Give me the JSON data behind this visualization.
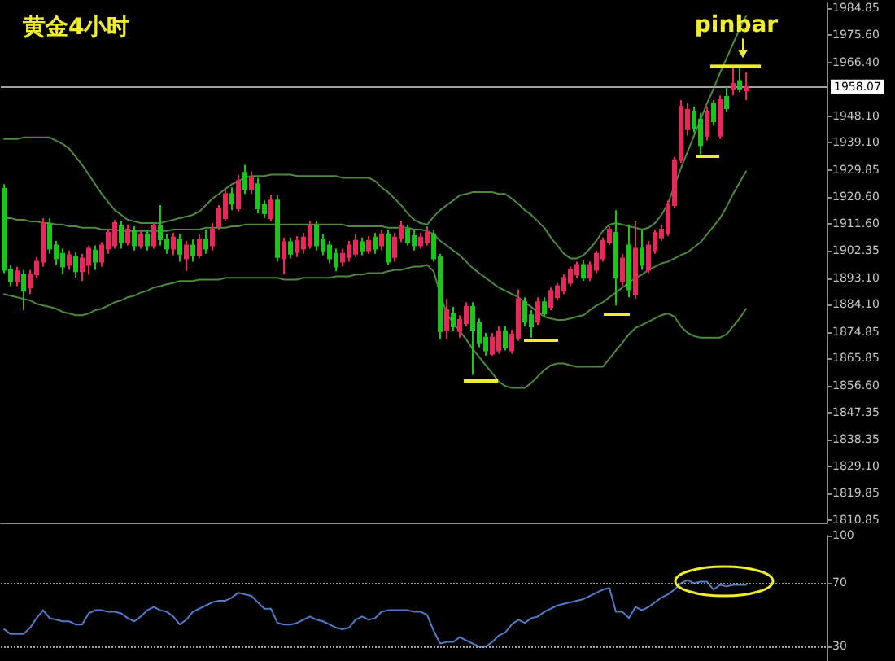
{
  "chart_data": [
    {
      "type": "candlestick",
      "title": "黄金4小时",
      "categories": [
        null,
        null,
        null,
        null,
        null,
        null,
        null,
        null,
        null,
        null,
        null,
        null,
        null,
        null,
        null,
        null,
        null,
        null,
        null,
        null,
        null,
        null,
        null,
        null,
        null,
        null,
        null,
        null,
        null,
        null,
        null,
        null,
        null,
        null,
        null,
        null,
        null,
        null,
        null,
        null,
        null,
        null,
        null,
        null,
        null,
        null,
        null,
        null,
        null,
        null,
        null,
        null,
        null,
        null,
        null,
        null,
        null,
        null,
        null,
        null,
        null,
        null,
        null,
        null,
        null,
        null,
        null,
        null,
        null,
        null,
        null,
        null,
        null,
        null,
        null,
        null,
        null,
        null,
        null,
        null,
        null,
        null,
        null,
        null,
        null,
        null,
        null,
        null,
        null,
        null,
        null,
        null,
        null,
        null,
        null,
        null,
        null,
        null,
        null,
        null,
        null,
        null,
        null,
        null,
        null,
        null,
        null,
        null,
        null,
        null,
        null,
        null,
        null,
        null,
        null,
        null,
        null,
        null,
        null,
        null,
        null,
        null,
        null,
        null,
        null,
        null,
        null
      ],
      "ohlc": [
        [
          1923.4,
          1925.0,
          1894.8,
          1895.9
        ],
        [
          1895.9,
          1897.6,
          1890.4,
          1892.1
        ],
        [
          1892.1,
          1897.0,
          1890.4,
          1895.4
        ],
        [
          1894.3,
          1895.9,
          1882.2,
          1888.8
        ],
        [
          1889.9,
          1895.9,
          1887.7,
          1894.3
        ],
        [
          1894.3,
          1900.3,
          1893.2,
          1898.7
        ],
        [
          1898.7,
          1913.5,
          1897.0,
          1911.8
        ],
        [
          1911.3,
          1913.5,
          1901.4,
          1903.1
        ],
        [
          1904.2,
          1905.8,
          1897.6,
          1899.8
        ],
        [
          1901.4,
          1903.1,
          1894.3,
          1897.0
        ],
        [
          1897.6,
          1902.5,
          1895.9,
          1900.9
        ],
        [
          1900.3,
          1901.9,
          1893.2,
          1895.4
        ],
        [
          1895.4,
          1901.4,
          1892.1,
          1899.8
        ],
        [
          1897.6,
          1904.2,
          1894.3,
          1903.1
        ],
        [
          1902.5,
          1904.2,
          1895.9,
          1898.7
        ],
        [
          1898.7,
          1905.3,
          1897.0,
          1904.2
        ],
        [
          1903.1,
          1909.6,
          1901.4,
          1908.5
        ],
        [
          1904.2,
          1912.9,
          1903.1,
          1911.8
        ],
        [
          1910.7,
          1912.4,
          1903.1,
          1905.3
        ],
        [
          1905.3,
          1911.3,
          1904.2,
          1909.6
        ],
        [
          1909.1,
          1910.7,
          1902.5,
          1904.2
        ],
        [
          1904.2,
          1909.6,
          1903.1,
          1908.0
        ],
        [
          1908.0,
          1909.6,
          1902.5,
          1904.2
        ],
        [
          1904.2,
          1911.8,
          1903.1,
          1910.7
        ],
        [
          1910.7,
          1917.9,
          1904.2,
          1906.3
        ],
        [
          1906.3,
          1908.0,
          1901.4,
          1903.1
        ],
        [
          1903.1,
          1908.5,
          1900.9,
          1906.9
        ],
        [
          1906.3,
          1908.0,
          1898.7,
          1901.4
        ],
        [
          1899.8,
          1905.8,
          1895.4,
          1904.2
        ],
        [
          1904.2,
          1906.3,
          1898.7,
          1900.9
        ],
        [
          1900.9,
          1908.0,
          1899.8,
          1906.3
        ],
        [
          1906.3,
          1909.6,
          1901.4,
          1903.1
        ],
        [
          1904.2,
          1911.8,
          1902.5,
          1909.6
        ],
        [
          1910.7,
          1917.9,
          1909.6,
          1916.8
        ],
        [
          1913.5,
          1923.4,
          1912.4,
          1921.7
        ],
        [
          1921.7,
          1923.9,
          1916.2,
          1918.4
        ],
        [
          1916.8,
          1928.3,
          1915.7,
          1926.1
        ],
        [
          1928.9,
          1931.6,
          1921.7,
          1923.4
        ],
        [
          1923.4,
          1929.4,
          1921.7,
          1927.2
        ],
        [
          1925.0,
          1927.2,
          1915.1,
          1916.8
        ],
        [
          1917.9,
          1919.5,
          1913.5,
          1915.1
        ],
        [
          1913.5,
          1921.2,
          1912.4,
          1919.5
        ],
        [
          1919.5,
          1921.2,
          1898.7,
          1900.3
        ],
        [
          1899.8,
          1906.9,
          1894.3,
          1905.3
        ],
        [
          1905.3,
          1906.9,
          1899.8,
          1901.4
        ],
        [
          1901.9,
          1907.4,
          1900.3,
          1905.8
        ],
        [
          1903.1,
          1908.5,
          1901.4,
          1906.9
        ],
        [
          1904.2,
          1912.4,
          1903.1,
          1910.7
        ],
        [
          1910.7,
          1912.4,
          1902.5,
          1904.2
        ],
        [
          1906.3,
          1908.0,
          1900.9,
          1902.5
        ],
        [
          1904.2,
          1905.8,
          1898.1,
          1899.8
        ],
        [
          1901.4,
          1903.1,
          1895.4,
          1897.0
        ],
        [
          1898.7,
          1903.1,
          1897.0,
          1901.4
        ],
        [
          1900.3,
          1905.8,
          1898.7,
          1904.2
        ],
        [
          1901.4,
          1908.0,
          1900.3,
          1905.8
        ],
        [
          1905.3,
          1906.9,
          1900.9,
          1902.5
        ],
        [
          1902.5,
          1907.4,
          1901.4,
          1905.8
        ],
        [
          1906.9,
          1908.5,
          1901.4,
          1903.1
        ],
        [
          1904.2,
          1909.6,
          1902.5,
          1908.0
        ],
        [
          1908.0,
          1909.6,
          1897.6,
          1898.7
        ],
        [
          1900.3,
          1908.5,
          1898.7,
          1906.9
        ],
        [
          1906.9,
          1912.4,
          1905.3,
          1910.7
        ],
        [
          1909.6,
          1911.3,
          1904.2,
          1905.3
        ],
        [
          1907.4,
          1909.6,
          1902.5,
          1904.2
        ],
        [
          1904.2,
          1908.5,
          1903.1,
          1906.9
        ],
        [
          1905.3,
          1910.7,
          1904.2,
          1908.5
        ],
        [
          1908.0,
          1909.6,
          1898.7,
          1899.8
        ],
        [
          1900.3,
          1901.4,
          1872.3,
          1875.1
        ],
        [
          1875.6,
          1886.0,
          1872.3,
          1882.2
        ],
        [
          1881.1,
          1883.3,
          1875.1,
          1876.7
        ],
        [
          1875.1,
          1880.5,
          1872.9,
          1878.9
        ],
        [
          1877.8,
          1884.9,
          1876.7,
          1883.3
        ],
        [
          1883.3,
          1884.9,
          1860.2,
          1875.6
        ],
        [
          1877.8,
          1879.4,
          1869.6,
          1871.2
        ],
        [
          1872.9,
          1874.5,
          1866.8,
          1868.5
        ],
        [
          1867.4,
          1874.5,
          1866.8,
          1872.9
        ],
        [
          1868.5,
          1876.7,
          1867.4,
          1875.1
        ],
        [
          1875.1,
          1876.7,
          1868.5,
          1869.6
        ],
        [
          1868.5,
          1875.6,
          1867.4,
          1874.0
        ],
        [
          1872.9,
          1889.3,
          1871.8,
          1886.0
        ],
        [
          1884.9,
          1886.6,
          1876.7,
          1878.3
        ],
        [
          1880.5,
          1882.2,
          1872.9,
          1876.7
        ],
        [
          1878.3,
          1886.6,
          1877.2,
          1884.9
        ],
        [
          1884.9,
          1886.6,
          1880.0,
          1881.1
        ],
        [
          1883.3,
          1889.9,
          1882.2,
          1888.8
        ],
        [
          1886.6,
          1891.5,
          1885.5,
          1890.4
        ],
        [
          1888.8,
          1894.3,
          1887.7,
          1893.2
        ],
        [
          1891.5,
          1897.0,
          1890.4,
          1895.9
        ],
        [
          1894.3,
          1898.7,
          1893.2,
          1897.6
        ],
        [
          1897.6,
          1899.2,
          1892.1,
          1893.2
        ],
        [
          1893.2,
          1898.7,
          1892.1,
          1897.6
        ],
        [
          1895.9,
          1902.5,
          1894.8,
          1901.4
        ],
        [
          1899.8,
          1906.9,
          1898.7,
          1905.8
        ],
        [
          1905.3,
          1910.7,
          1904.2,
          1909.6
        ],
        [
          1908.5,
          1916.2,
          1883.8,
          1893.2
        ],
        [
          1892.1,
          1901.4,
          1890.4,
          1899.8
        ],
        [
          1904.2,
          1911.3,
          1886.6,
          1889.3
        ],
        [
          1887.7,
          1912.4,
          1886.0,
          1903.1
        ],
        [
          1903.1,
          1909.6,
          1895.9,
          1897.6
        ],
        [
          1895.9,
          1905.8,
          1894.8,
          1904.2
        ],
        [
          1902.5,
          1909.6,
          1901.4,
          1908.5
        ],
        [
          1906.9,
          1911.3,
          1905.8,
          1909.6
        ],
        [
          1908.5,
          1919.5,
          1907.4,
          1917.9
        ],
        [
          1917.9,
          1934.3,
          1916.8,
          1933.2
        ],
        [
          1933.2,
          1953.6,
          1932.2,
          1951.4
        ],
        [
          1943.7,
          1952.5,
          1941.5,
          1950.3
        ],
        [
          1949.7,
          1951.4,
          1942.6,
          1944.2
        ],
        [
          1947.0,
          1949.2,
          1934.3,
          1938.2
        ],
        [
          1941.5,
          1951.4,
          1939.8,
          1949.7
        ],
        [
          1952.5,
          1953.6,
          1944.8,
          1946.4
        ],
        [
          1941.5,
          1955.2,
          1940.4,
          1953.6
        ],
        [
          1954.7,
          1958.0,
          1949.7,
          1950.8
        ],
        [
          1957.4,
          1964.5,
          1955.2,
          1959.1
        ],
        [
          1960.1,
          1964.5,
          1956.3,
          1957.4
        ],
        [
          1956.9,
          1963.0,
          1953.6,
          1958.1
        ],
        null,
        null,
        null,
        null,
        null,
        null,
        null,
        null,
        null,
        null,
        null,
        null
      ],
      "colors": [
        "#1cc41c",
        "#1cc41c",
        "#e8285a",
        "#1cc41c",
        "#e8285a",
        "#e8285a",
        "#e8285a",
        "#1cc41c",
        "#1cc41c",
        "#1cc41c",
        "#e8285a",
        "#1cc41c",
        "#e8285a",
        "#e8285a",
        "#1cc41c",
        "#e8285a",
        "#e8285a",
        "#e8285a",
        "#1cc41c",
        "#e8285a",
        "#1cc41c",
        "#e8285a",
        "#1cc41c",
        "#e8285a",
        "#1cc41c",
        "#1cc41c",
        "#e8285a",
        "#1cc41c",
        "#e8285a",
        "#1cc41c",
        "#e8285a",
        "#1cc41c",
        "#e8285a",
        "#e8285a",
        "#e8285a",
        "#1cc41c",
        "#e8285a",
        "#1cc41c",
        "#e8285a",
        "#1cc41c",
        "#1cc41c",
        "#e8285a",
        "#1cc41c",
        "#e8285a",
        "#1cc41c",
        "#e8285a",
        "#e8285a",
        "#e8285a",
        "#1cc41c",
        "#1cc41c",
        "#1cc41c",
        "#1cc41c",
        "#e8285a",
        "#e8285a",
        "#e8285a",
        "#1cc41c",
        "#e8285a",
        "#1cc41c",
        "#e8285a",
        "#1cc41c",
        "#e8285a",
        "#e8285a",
        "#1cc41c",
        "#1cc41c",
        "#e8285a",
        "#e8285a",
        "#1cc41c",
        "#1cc41c",
        "#e8285a",
        "#1cc41c",
        "#e8285a",
        "#e8285a",
        "#1cc41c",
        "#1cc41c",
        "#1cc41c",
        "#e8285a",
        "#e8285a",
        "#1cc41c",
        "#e8285a",
        "#e8285a",
        "#1cc41c",
        "#1cc41c",
        "#e8285a",
        "#1cc41c",
        "#e8285a",
        "#e8285a",
        "#e8285a",
        "#e8285a",
        "#e8285a",
        "#1cc41c",
        "#e8285a",
        "#e8285a",
        "#e8285a",
        "#e8285a",
        "#1cc41c",
        "#e8285a",
        "#1cc41c",
        "#e8285a",
        "#1cc41c",
        "#e8285a",
        "#e8285a",
        "#e8285a",
        "#e8285a",
        "#e8285a",
        "#e8285a",
        "#e8285a",
        "#1cc41c",
        "#1cc41c",
        "#e8285a",
        "#1cc41c",
        "#e8285a",
        "#1cc41c",
        "#e8285a",
        "#1cc41c",
        "#e8285a",
        null,
        null,
        null,
        null,
        null,
        null,
        null,
        null,
        null,
        null,
        null,
        null
      ],
      "series": [
        {
          "type": "line",
          "color": "#4e8a3e",
          "values": [
            1940.4,
            1940.4,
            1940.4,
            1940.9,
            1940.9,
            1940.9,
            1940.9,
            1940.9,
            1939.8,
            1938.7,
            1937.1,
            1934.3,
            1931.6,
            1928.3,
            1925.0,
            1921.7,
            1919.0,
            1916.2,
            1914.6,
            1912.9,
            1912.4,
            1911.8,
            1911.8,
            1911.8,
            1911.8,
            1912.4,
            1912.9,
            1913.5,
            1914.0,
            1914.6,
            1915.7,
            1917.9,
            1920.1,
            1921.7,
            1923.4,
            1925.0,
            1926.1,
            1927.2,
            1927.8,
            1927.8,
            1927.8,
            1928.3,
            1928.3,
            1928.3,
            1928.3,
            1927.8,
            1927.8,
            1927.8,
            1927.8,
            1927.8,
            1927.8,
            1927.8,
            1927.2,
            1927.2,
            1927.2,
            1927.2,
            1927.2,
            1926.1,
            1923.9,
            1922.3,
            1920.1,
            1917.9,
            1915.1,
            1912.9,
            1911.8,
            1911.3,
            1914.0,
            1916.2,
            1917.9,
            1919.5,
            1921.2,
            1921.7,
            1922.3,
            1922.3,
            1922.3,
            1922.3,
            1921.7,
            1921.7,
            1920.1,
            1918.4,
            1916.2,
            1914.6,
            1912.4,
            1910.2,
            1906.9,
            1904.2,
            1901.4,
            1899.8,
            1899.8,
            1900.9,
            1903.1,
            1905.8,
            1909.1,
            1911.3,
            1911.8,
            1911.3,
            1910.7,
            1910.2,
            1909.6,
            1910.2,
            1911.8,
            1914.6,
            1918.4,
            1924.5,
            1930.5,
            1936.0,
            1941.5,
            1947.0,
            1952.5,
            1957.4,
            1962.9,
            1967.8,
            1972.8,
            1977.7,
            1982.1,
            null,
            null,
            null,
            null,
            null,
            null,
            null,
            null,
            null,
            null,
            null,
            null
          ]
        },
        {
          "type": "line",
          "color": "#4e8a3e",
          "values": [
            1913.5,
            1913.5,
            1912.9,
            1912.9,
            1912.4,
            1912.4,
            1911.8,
            1911.8,
            1911.3,
            1911.3,
            1910.7,
            1910.7,
            1910.2,
            1910.2,
            1910.2,
            1909.6,
            1909.6,
            1909.6,
            1909.1,
            1909.1,
            1909.1,
            1909.1,
            1909.1,
            1909.1,
            1909.1,
            1909.1,
            1909.6,
            1909.6,
            1909.6,
            1909.6,
            1909.6,
            1910.2,
            1910.2,
            1910.2,
            1910.2,
            1910.7,
            1910.7,
            1911.3,
            1911.3,
            1911.3,
            1911.3,
            1911.3,
            1911.3,
            1911.3,
            1911.3,
            1911.3,
            1911.3,
            1911.3,
            1911.3,
            1911.3,
            1911.3,
            1911.3,
            1911.3,
            1910.7,
            1910.7,
            1910.7,
            1910.7,
            1910.7,
            1910.7,
            1910.2,
            1910.2,
            1910.2,
            1910.2,
            1909.6,
            1909.6,
            1909.1,
            1908.0,
            1905.8,
            1904.2,
            1902.5,
            1900.9,
            1898.7,
            1896.5,
            1894.8,
            1893.2,
            1891.5,
            1889.9,
            1888.8,
            1887.7,
            1886.6,
            1884.9,
            1883.3,
            1881.6,
            1880.0,
            1879.4,
            1878.9,
            1878.9,
            1879.4,
            1880.0,
            1880.5,
            1882.2,
            1883.8,
            1884.9,
            1886.6,
            1888.2,
            1889.9,
            1891.5,
            1893.2,
            1894.3,
            1895.9,
            1897.0,
            1898.1,
            1898.7,
            1899.8,
            1900.9,
            1901.9,
            1903.6,
            1905.3,
            1908.0,
            1910.7,
            1913.5,
            1917.3,
            1921.7,
            1925.6,
            1929.4,
            null,
            null,
            null,
            null,
            null,
            null,
            null,
            null,
            null,
            null,
            null,
            null
          ]
        },
        {
          "type": "line",
          "color": "#4e8a3e",
          "values": [
            1887.7,
            1887.1,
            1886.6,
            1886.0,
            1885.5,
            1884.4,
            1883.8,
            1883.3,
            1882.7,
            1881.6,
            1881.1,
            1880.5,
            1880.5,
            1881.1,
            1882.2,
            1882.7,
            1883.8,
            1884.9,
            1885.5,
            1886.6,
            1887.1,
            1888.2,
            1888.8,
            1889.9,
            1890.4,
            1891.0,
            1891.5,
            1892.1,
            1892.1,
            1892.1,
            1892.6,
            1892.6,
            1892.6,
            1892.6,
            1893.2,
            1893.2,
            1893.2,
            1893.2,
            1893.2,
            1893.2,
            1893.2,
            1893.2,
            1893.2,
            1892.6,
            1892.6,
            1892.6,
            1893.2,
            1893.2,
            1893.2,
            1893.2,
            1893.2,
            1893.7,
            1893.7,
            1893.7,
            1894.3,
            1894.3,
            1894.8,
            1894.8,
            1894.8,
            1895.4,
            1895.9,
            1895.9,
            1896.5,
            1897.0,
            1897.0,
            1897.6,
            1895.4,
            1887.7,
            1881.1,
            1877.8,
            1875.1,
            1872.3,
            1869.0,
            1866.3,
            1863.5,
            1860.8,
            1858.0,
            1856.4,
            1855.8,
            1855.8,
            1855.8,
            1857.5,
            1859.7,
            1861.9,
            1863.5,
            1864.1,
            1864.1,
            1863.5,
            1863.0,
            1863.0,
            1863.0,
            1863.0,
            1863.0,
            1865.7,
            1868.5,
            1871.2,
            1874.0,
            1876.2,
            1877.2,
            1878.3,
            1879.4,
            1880.5,
            1881.1,
            1880.0,
            1876.7,
            1874.5,
            1873.4,
            1872.9,
            1872.9,
            1872.9,
            1872.9,
            1874.0,
            1876.7,
            1879.4,
            1882.7,
            null,
            null,
            null,
            null,
            null,
            null,
            null,
            null,
            null,
            null,
            null,
            null
          ]
        }
      ],
      "ylim": [
        1809.7,
        1986.5
      ],
      "yticks": [
        1984.85,
        {
          "value": 1975.6,
          "label": "1975.60"
        },
        {
          "value": 1966.4,
          "label": "1966.40"
        },
        {
          "value": 1948.1,
          "label": "1948.10"
        },
        {
          "value": 1939.1,
          "label": "1939.10"
        },
        1929.85,
        {
          "value": 1920.6,
          "label": "1920.60"
        },
        {
          "value": 1911.6,
          "label": "1911.60"
        },
        1902.35,
        {
          "value": 1893.1,
          "label": "1893.10"
        },
        {
          "value": 1884.1,
          "label": "1884.10"
        },
        1874.85,
        1865.85,
        {
          "value": 1856.6,
          "label": "1856.60"
        },
        1847.35,
        1838.35,
        {
          "value": 1829.1,
          "label": "1829.10"
        },
        1819.85,
        1810.85
      ],
      "ref_lines": [
        {
          "axis": "y",
          "value": 1958.07,
          "label": "1958.07",
          "color": "#a0a0a0",
          "line_style": "solid"
        }
      ],
      "annotations": [
        {
          "text": "pinbar",
          "y": 1965.1
        }
      ],
      "tick_labels": "y",
      "marker": "none"
    },
    {
      "type": "line",
      "categories": [
        null,
        null,
        null,
        null,
        null,
        null,
        null,
        null,
        null,
        null,
        null,
        null,
        null,
        null,
        null,
        null,
        null,
        null,
        null,
        null,
        null,
        null,
        null,
        null,
        null,
        null,
        null,
        null,
        null,
        null,
        null,
        null,
        null,
        null,
        null,
        null,
        null,
        null,
        null,
        null,
        null,
        null,
        null,
        null,
        null,
        null,
        null,
        null,
        null,
        null,
        null,
        null,
        null,
        null,
        null,
        null,
        null,
        null,
        null,
        null,
        null,
        null,
        null,
        null,
        null,
        null,
        null,
        null,
        null,
        null,
        null,
        null,
        null,
        null,
        null,
        null,
        null,
        null,
        null,
        null,
        null,
        null,
        null,
        null,
        null,
        null,
        null,
        null,
        null,
        null,
        null,
        null,
        null,
        null,
        null,
        null,
        null,
        null,
        null,
        null,
        null,
        null,
        null,
        null,
        null,
        null,
        null,
        null,
        null,
        null,
        null,
        null,
        null,
        null,
        null,
        null,
        null,
        null,
        null,
        null,
        null,
        null,
        null,
        null,
        null,
        null,
        null
      ],
      "series": [
        {
          "color": "#4f7dc9",
          "values": [
            41,
            38,
            38,
            38,
            42,
            48,
            53,
            48,
            47,
            46,
            46,
            44,
            44,
            51,
            53,
            53,
            52,
            52,
            51,
            48,
            46,
            49,
            53,
            55,
            53,
            52,
            49,
            44,
            47,
            52,
            54,
            56,
            58,
            59,
            59,
            61,
            64,
            63,
            62,
            58,
            54,
            54,
            45,
            44,
            44,
            45,
            47,
            49,
            47,
            46,
            44,
            42,
            41,
            42,
            47,
            49,
            47,
            48,
            52,
            53,
            53,
            53,
            53,
            52,
            52,
            50,
            40,
            32,
            33,
            33,
            36,
            34,
            32,
            30,
            30,
            33,
            37,
            39,
            44,
            47,
            45,
            48,
            49,
            52,
            54,
            56,
            57,
            58,
            59,
            60,
            62,
            64,
            66,
            67,
            52,
            52,
            48,
            55,
            53,
            55,
            58,
            61,
            63,
            66,
            70,
            72,
            70,
            71,
            71,
            66,
            69,
            68,
            69,
            69,
            69,
            null,
            null,
            null,
            null,
            null,
            null,
            null,
            null,
            null,
            null,
            null,
            null
          ]
        }
      ],
      "ylim": [
        21,
        100
      ],
      "yticks": [
        30,
        70,
        100
      ],
      "ref_lines": [
        {
          "axis": "y",
          "value": 70,
          "color": "#a0a0a0",
          "line_style": "dotted"
        },
        {
          "axis": "y",
          "value": 30,
          "color": "#a0a0a0",
          "line_style": "dotted"
        }
      ],
      "tick_labels": "y",
      "marker": "none"
    }
  ]
}
